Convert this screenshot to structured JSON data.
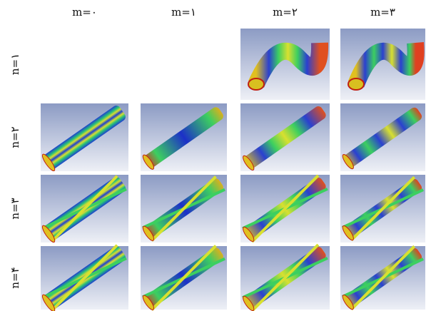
{
  "columns": [
    "m=۰",
    "m=۱",
    "m=۲",
    "m=۳"
  ],
  "rows": [
    "n=۱",
    "n=۲",
    "n=۳",
    "n=۴"
  ]
}
